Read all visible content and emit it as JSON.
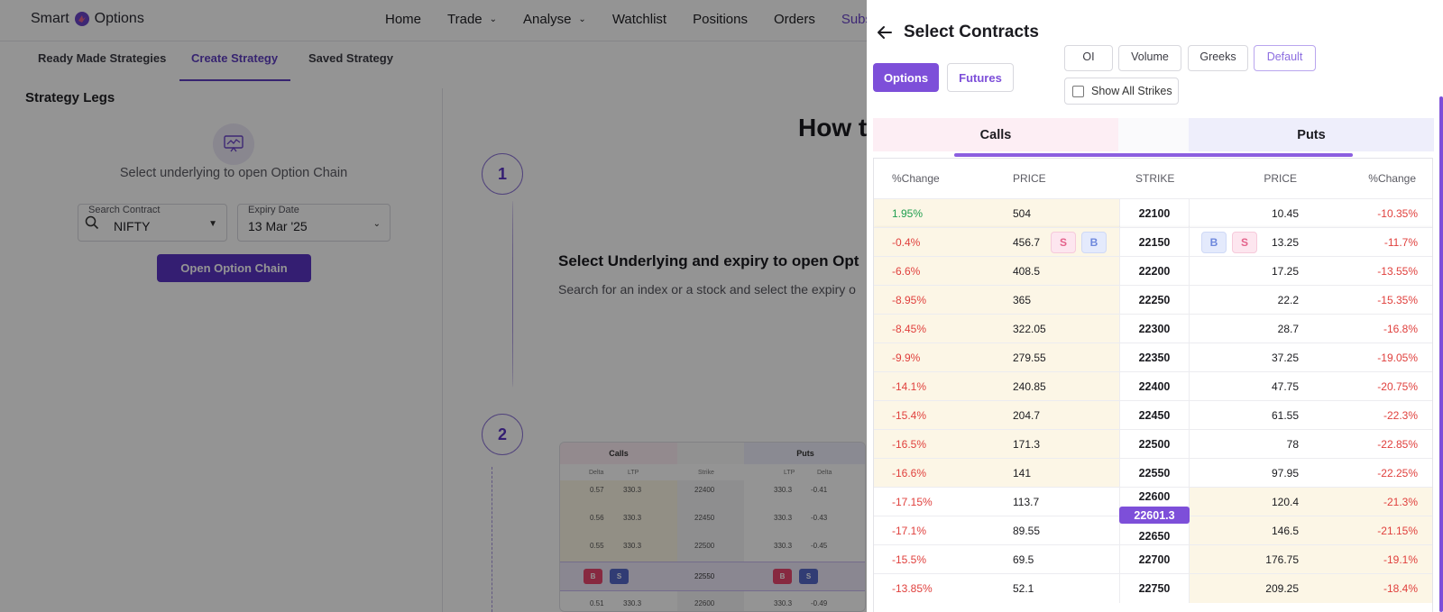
{
  "app": {
    "logo": {
      "left": "Smart",
      "right": "Options"
    },
    "nav": [
      {
        "label": "Home",
        "dropdown": false
      },
      {
        "label": "Trade",
        "dropdown": true
      },
      {
        "label": "Analyse",
        "dropdown": true
      },
      {
        "label": "Watchlist",
        "dropdown": false
      },
      {
        "label": "Positions",
        "dropdown": false
      },
      {
        "label": "Orders",
        "dropdown": false
      },
      {
        "label": "Subs",
        "dropdown": false
      }
    ],
    "subtabs": [
      "Ready Made Strategies",
      "Create Strategy",
      "Saved Strategy"
    ],
    "active_subtab": "Create Strategy",
    "legs": {
      "title": "Strategy Legs",
      "message": "Select underlying to open Option Chain",
      "search_label": "Search Contract",
      "search_value": "NIFTY",
      "expiry_label": "Expiry Date",
      "expiry_value": "13 Mar '25",
      "open_button": "Open Option Chain"
    },
    "guide": {
      "title": "How t",
      "steps": [
        "1",
        "2"
      ],
      "step1_title": "Select Underlying and expiry to open Opt",
      "step1_desc": "Search for an index or a stock and select the expiry o"
    },
    "preview": {
      "calls": "Calls",
      "puts": "Puts",
      "headers": [
        "Delta",
        "LTP",
        "Strike",
        "LTP",
        "Delta"
      ],
      "rows": [
        {
          "delta_c": "0.57",
          "ltp_c": "330.3",
          "strike": "22400",
          "ltp_p": "330.3",
          "delta_p": "-0.41"
        },
        {
          "delta_c": "0.56",
          "ltp_c": "330.3",
          "strike": "22450",
          "ltp_p": "330.3",
          "delta_p": "-0.43"
        },
        {
          "delta_c": "0.55",
          "ltp_c": "330.3",
          "strike": "22500",
          "ltp_p": "330.3",
          "delta_p": "-0.45"
        },
        {
          "delta_c": "",
          "ltp_c": "",
          "strike": "22550",
          "ltp_p": "",
          "delta_p": ""
        },
        {
          "delta_c": "0.51",
          "ltp_c": "330.3",
          "strike": "22600",
          "ltp_p": "330.3",
          "delta_p": "-0.49"
        }
      ],
      "badges": {
        "b": "B",
        "s": "S"
      }
    }
  },
  "drawer": {
    "title": "Select Contracts",
    "segments": [
      "Options",
      "Futures"
    ],
    "active_segment": "Options",
    "views": [
      "OI",
      "Volume",
      "Greeks",
      "Default"
    ],
    "active_view": "Default",
    "show_all_strikes": "Show All Strikes",
    "calls_tab": "Calls",
    "puts_tab": "Puts",
    "headers": {
      "call_change": "%Change",
      "call_price": "PRICE",
      "strike": "STRIKE",
      "put_price": "PRICE",
      "put_change": "%Change"
    },
    "buy_label": "B",
    "sell_label": "S",
    "spot_price": "22601.3",
    "rows": [
      {
        "call_change": "1.95%",
        "call_price": "504",
        "strike": "22100",
        "put_price": "10.45",
        "put_change": "-10.35%"
      },
      {
        "call_change": "-0.4%",
        "call_price": "456.7",
        "strike": "22150",
        "put_price": "13.25",
        "put_change": "-11.7%"
      },
      {
        "call_change": "-6.6%",
        "call_price": "408.5",
        "strike": "22200",
        "put_price": "17.25",
        "put_change": "-13.55%"
      },
      {
        "call_change": "-8.95%",
        "call_price": "365",
        "strike": "22250",
        "put_price": "22.2",
        "put_change": "-15.35%"
      },
      {
        "call_change": "-8.45%",
        "call_price": "322.05",
        "strike": "22300",
        "put_price": "28.7",
        "put_change": "-16.8%"
      },
      {
        "call_change": "-9.9%",
        "call_price": "279.55",
        "strike": "22350",
        "put_price": "37.25",
        "put_change": "-19.05%"
      },
      {
        "call_change": "-14.1%",
        "call_price": "240.85",
        "strike": "22400",
        "put_price": "47.75",
        "put_change": "-20.75%"
      },
      {
        "call_change": "-15.4%",
        "call_price": "204.7",
        "strike": "22450",
        "put_price": "61.55",
        "put_change": "-22.3%"
      },
      {
        "call_change": "-16.5%",
        "call_price": "171.3",
        "strike": "22500",
        "put_price": "78",
        "put_change": "-22.85%"
      },
      {
        "call_change": "-16.6%",
        "call_price": "141",
        "strike": "22550",
        "put_price": "97.95",
        "put_change": "-22.25%"
      },
      {
        "call_change": "-17.15%",
        "call_price": "113.7",
        "strike": "22600",
        "put_price": "120.4",
        "put_change": "-21.3%"
      },
      {
        "call_change": "-17.1%",
        "call_price": "89.55",
        "strike": "22650",
        "put_price": "146.5",
        "put_change": "-21.15%"
      },
      {
        "call_change": "-15.5%",
        "call_price": "69.5",
        "strike": "22700",
        "put_price": "176.75",
        "put_change": "-19.1%"
      },
      {
        "call_change": "-13.85%",
        "call_price": "52.1",
        "strike": "22750",
        "put_price": "209.25",
        "put_change": "-18.4%"
      }
    ],
    "colors": {
      "accent": "#7d4fd9",
      "itm_bg": "#fcf6e6",
      "calls_tab_bg": "#fdeef4",
      "puts_tab_bg": "#eeeefb",
      "negative": "#e0403d",
      "positive": "#1f9e4e"
    }
  }
}
